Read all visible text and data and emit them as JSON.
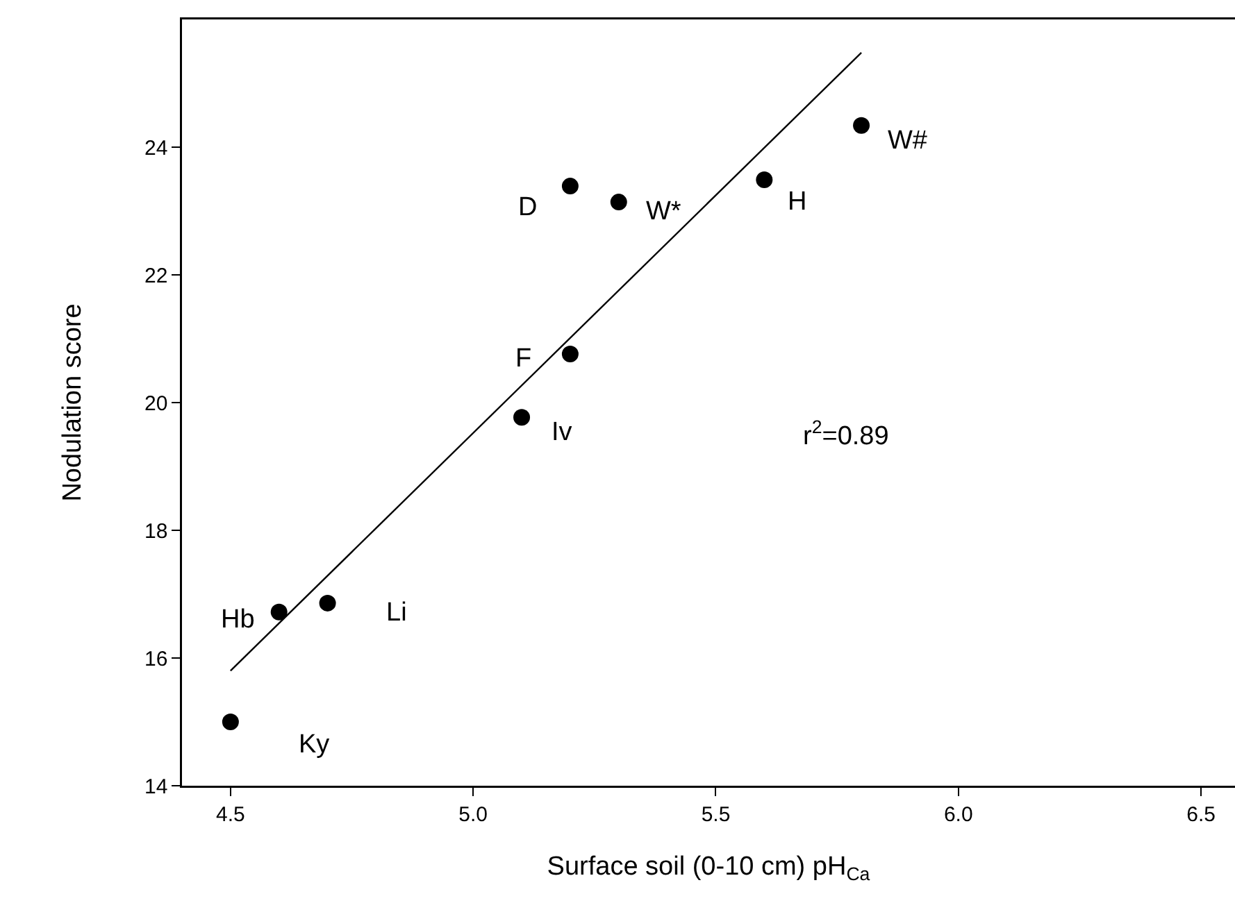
{
  "chart_data": {
    "type": "scatter",
    "xlabel": "Surface soil (0-10 cm) pH$_{Ca}$",
    "ylabel": "Nodulation score",
    "xlim": [
      4.4,
      6.57
    ],
    "ylim": [
      14,
      26
    ],
    "xticks": [
      4.5,
      {
        "value": 5,
        "label": "5.0"
      },
      5.5,
      {
        "value": 6,
        "label": "6.0"
      },
      6.5
    ],
    "yticks": [
      14,
      16,
      18,
      20,
      22,
      24
    ],
    "grid": false,
    "series": [
      {
        "marker": "circle",
        "color": "#000000",
        "x": [
          4.5,
          4.6,
          4.7,
          5.1,
          5.2,
          5.2,
          5.3,
          5.6,
          5.8
        ],
        "values": [
          15.0,
          16.72,
          16.86,
          19.77,
          20.76,
          23.39,
          23.14,
          23.49,
          24.34
        ]
      },
      {
        "type": "line",
        "color": "#000000",
        "x": [
          4.5,
          5.8
        ],
        "values": [
          15.8,
          25.48
        ]
      }
    ],
    "annotations": [
      {
        "text": "Ky",
        "x": 4.5,
        "y": 15.0
      },
      {
        "text": "Hb",
        "x": 4.6,
        "y": 16.72
      },
      {
        "text": "Li",
        "x": 4.7,
        "y": 16.86
      },
      {
        "text": "Iv",
        "x": 5.1,
        "y": 19.77
      },
      {
        "text": "F",
        "x": 5.2,
        "y": 20.76
      },
      {
        "text": "D",
        "x": 5.2,
        "y": 23.39
      },
      {
        "text": "W*",
        "x": 5.3,
        "y": 23.14
      },
      {
        "text": "H",
        "x": 5.6,
        "y": 23.49
      },
      {
        "text": "W#",
        "x": 5.8,
        "y": 24.34
      },
      "r$^{2}$=0.89"
    ]
  }
}
